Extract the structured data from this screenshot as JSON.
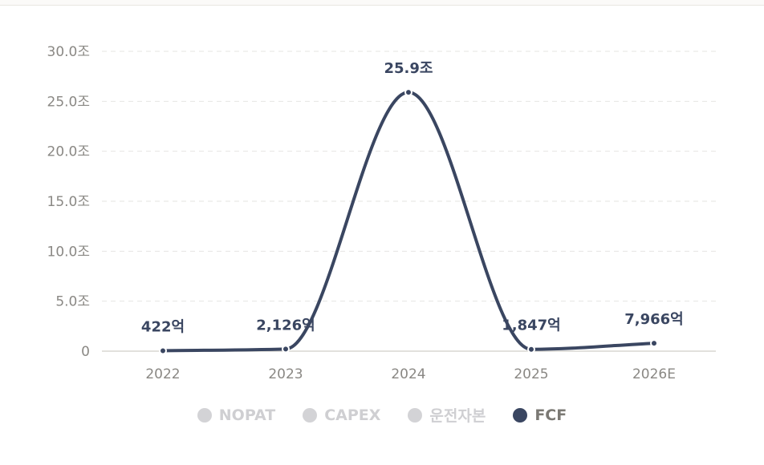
{
  "chart_data": {
    "type": "line",
    "categories": [
      "2022",
      "2023",
      "2024",
      "2025",
      "2026E"
    ],
    "series": [
      {
        "name": "FCF",
        "values": [
          422,
          2126,
          259000,
          1847,
          7966
        ],
        "labels": [
          "422억",
          "2,126억",
          "25.9조",
          "1,847억",
          "7,966억"
        ],
        "color": "#3a4661"
      }
    ],
    "unit": "억",
    "ylim": [
      0,
      300000
    ],
    "yticks": [
      0,
      50000,
      100000,
      150000,
      200000,
      250000,
      300000
    ],
    "ytick_labels": [
      "0",
      "5.0조",
      "10.0조",
      "15.0조",
      "20.0조",
      "25.0조",
      "30.0조"
    ],
    "grid": true,
    "legend_position": "bottom-center"
  },
  "legend": [
    {
      "label": "NOPAT",
      "color": "#d3d3d6",
      "text_color": "#cfcfd2",
      "active": false
    },
    {
      "label": "CAPEX",
      "color": "#d3d3d6",
      "text_color": "#cfcfd2",
      "active": false
    },
    {
      "label": "운전자본",
      "color": "#d3d3d6",
      "text_color": "#cfcfd2",
      "active": false
    },
    {
      "label": "FCF",
      "color": "#3a4661",
      "text_color": "#7b7974",
      "active": true
    }
  ],
  "colors": {
    "grid": "#e6e5e2",
    "axis": "#d9d7d2",
    "line": "#3a4661"
  }
}
